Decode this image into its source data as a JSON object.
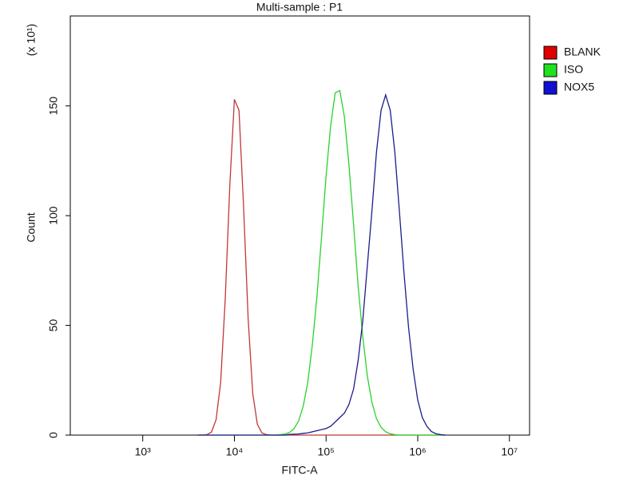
{
  "chart_data": {
    "type": "line",
    "title": "Multi-sample : P1",
    "x_label": "FITC-A",
    "y_label": "Count",
    "y_multiplier": "(x 10¹)",
    "xscale": "log",
    "xlim": [
      162,
      16600000
    ],
    "ylim": [
      0,
      191
    ],
    "xticks": [
      {
        "value": 1000,
        "label": "10³"
      },
      {
        "value": 10000,
        "label": "10⁴"
      },
      {
        "value": 100000,
        "label": "10⁵"
      },
      {
        "value": 1000000,
        "label": "10⁶"
      },
      {
        "value": 10000000,
        "label": "10⁷"
      }
    ],
    "yticks": [
      0,
      50,
      100,
      150
    ],
    "legend": "right",
    "x": [
      3981,
      4467,
      5012,
      5623,
      6310,
      7079,
      7943,
      8913,
      10000,
      11220,
      12589,
      14125,
      15849,
      17783,
      19953,
      22387,
      25119,
      28184,
      31623,
      35481,
      39811,
      44668,
      50119,
      56234,
      63096,
      70795,
      79433,
      89125,
      100000,
      112202,
      125893,
      141254,
      158489,
      177828,
      199526,
      223872,
      251189,
      281838,
      316228,
      354813,
      398107,
      446684,
      501187,
      562341,
      630957,
      707946,
      794328,
      891251,
      1000000,
      1122018,
      1258925,
      1412538,
      1584893,
      1778279,
      1995262
    ],
    "series": [
      {
        "name": "BLANK",
        "color": "#c03838",
        "legend_color": "#e00000",
        "values": [
          0,
          0,
          0.2,
          1.4,
          7,
          24,
          62,
          114,
          153,
          148,
          104,
          53,
          19,
          5,
          1,
          0.2,
          0,
          0,
          0,
          0,
          0,
          0,
          0,
          0,
          0,
          0,
          0,
          0,
          0,
          0,
          0,
          0,
          0,
          0,
          0,
          0,
          0,
          0,
          0,
          0,
          0,
          0,
          0,
          0,
          0,
          0,
          0,
          0,
          0,
          0,
          0,
          0,
          0,
          0,
          0
        ]
      },
      {
        "name": "ISO",
        "color": "#2bd12b",
        "legend_color": "#20e020",
        "values": [
          0,
          0,
          0,
          0,
          0,
          0,
          0,
          0,
          0,
          0,
          0,
          0,
          0,
          0,
          0,
          0,
          0,
          0,
          0.2,
          0.5,
          1.2,
          2.9,
          6.4,
          13,
          24,
          41,
          63,
          90,
          118,
          141,
          156,
          157,
          145,
          123,
          96,
          68,
          45,
          27,
          15,
          7.5,
          3.5,
          1.5,
          0.6,
          0.2,
          0,
          0,
          0,
          0,
          0,
          0,
          0,
          0,
          0,
          0,
          0
        ]
      },
      {
        "name": "NOX5",
        "color": "#1c1c8c",
        "legend_color": "#1010d0",
        "values": [
          0,
          0,
          0,
          0,
          0,
          0,
          0,
          0,
          0,
          0,
          0,
          0,
          0,
          0,
          0,
          0,
          0,
          0,
          0,
          0,
          0.3,
          0.4,
          0.5,
          0.8,
          1,
          1.5,
          2,
          2.5,
          3,
          4,
          6,
          8,
          10,
          14,
          21,
          34,
          52,
          77,
          102,
          129,
          148,
          155,
          148,
          129,
          102,
          74,
          49,
          30,
          16,
          8,
          4,
          1.6,
          0.6,
          0.2,
          0
        ]
      }
    ]
  }
}
